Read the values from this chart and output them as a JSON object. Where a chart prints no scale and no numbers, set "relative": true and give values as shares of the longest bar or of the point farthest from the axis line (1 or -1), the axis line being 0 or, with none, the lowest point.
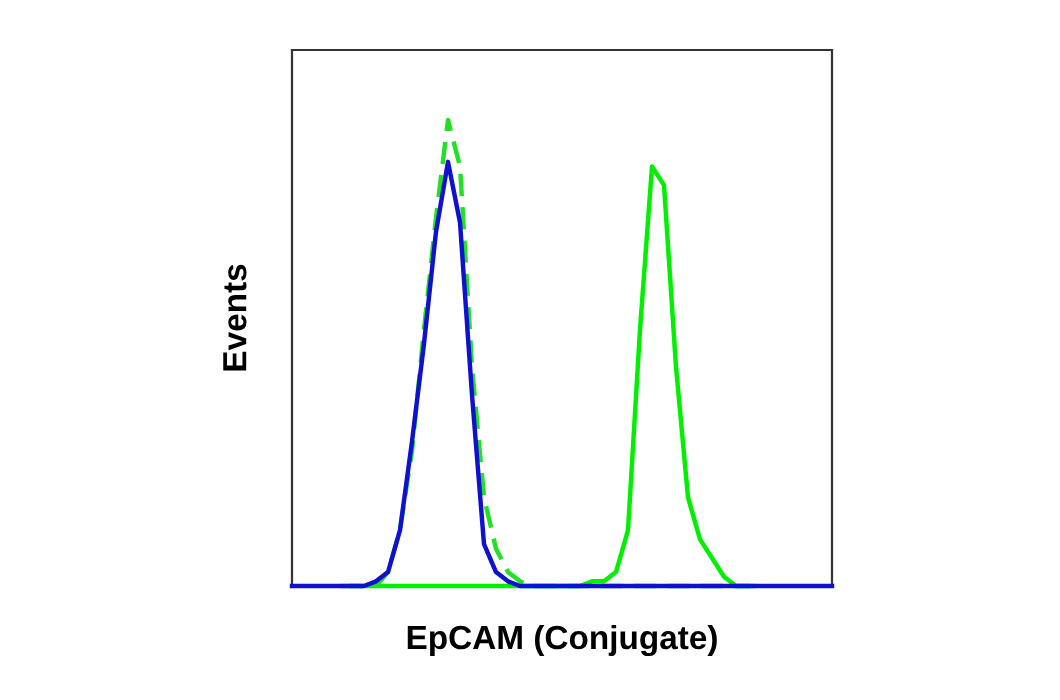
{
  "chart_data": {
    "type": "line",
    "xlabel": "EpCAM (Conjugate)",
    "ylabel": "Events",
    "relative": true,
    "categories": [
      null,
      null,
      null,
      null,
      null,
      null,
      null,
      null,
      null,
      null,
      null,
      null,
      null,
      null,
      null,
      null,
      null,
      null,
      null,
      null,
      null,
      null,
      null,
      null,
      null,
      null,
      null,
      null,
      null,
      null,
      null,
      null,
      null,
      null,
      null,
      null,
      null,
      null,
      null,
      null,
      null,
      null,
      null,
      null,
      null,
      null
    ],
    "series": [
      {
        "color": "#1010d0",
        "line_style": "solid",
        "values": [
          0,
          0,
          0,
          0,
          0,
          0,
          0,
          0.01,
          0.03,
          0.12,
          0.31,
          0.52,
          0.76,
          0.91,
          0.78,
          0.41,
          0.09,
          0.03,
          0.01,
          0,
          0,
          0,
          0,
          0,
          0,
          0,
          0,
          0,
          0,
          0,
          0,
          0,
          0,
          0,
          0,
          0,
          0,
          0,
          0,
          0,
          0,
          0,
          0,
          0,
          0,
          0
        ]
      },
      {
        "color": "#22e022",
        "line_style": "dashed",
        "values": [
          null,
          null,
          null,
          null,
          0,
          0,
          0,
          0,
          0.03,
          0.12,
          0.29,
          0.55,
          0.79,
          1.0,
          0.9,
          0.47,
          0.19,
          0.08,
          0.03,
          0.01,
          0,
          0,
          0,
          0,
          0,
          0,
          0,
          0,
          0,
          0,
          0,
          0,
          0,
          0,
          0,
          0,
          0,
          0,
          0,
          0,
          null,
          null,
          null,
          null,
          null,
          null
        ]
      },
      {
        "color": "#00f000",
        "line_style": "solid",
        "values": [
          null,
          null,
          null,
          null,
          null,
          0,
          0,
          0,
          0,
          0,
          0,
          0,
          0,
          0,
          0,
          0,
          0,
          0,
          0,
          0,
          0,
          0,
          0,
          0,
          0,
          0.01,
          0.01,
          0.03,
          0.12,
          0.55,
          0.9,
          0.86,
          0.47,
          0.19,
          0.1,
          0.06,
          0.02,
          0,
          0,
          null,
          null,
          null,
          null,
          null,
          null,
          null
        ]
      }
    ]
  }
}
